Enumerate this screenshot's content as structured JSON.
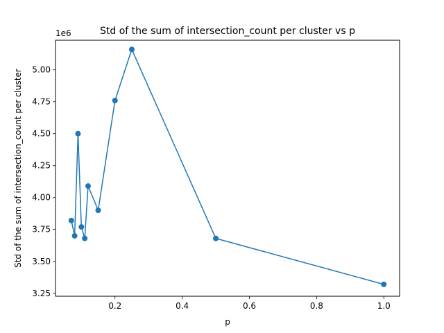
{
  "chart_data": {
    "type": "line",
    "title": "Std of the sum of intersection_count per cluster vs p",
    "xlabel": "p",
    "ylabel": "Std of the sum of intersection_count per cluster",
    "y_offset_label": "1e6",
    "xlim": [
      0.023,
      1.047
    ],
    "ylim": [
      3.227,
      5.232
    ],
    "x_ticks": [
      0.2,
      0.4,
      0.6,
      0.8,
      1.0
    ],
    "x_tick_labels": [
      "0.2",
      "0.4",
      "0.6",
      "0.8",
      "1.0"
    ],
    "y_ticks": [
      3.25,
      3.5,
      3.75,
      4.0,
      4.25,
      4.5,
      4.75,
      5.0
    ],
    "y_tick_labels": [
      "3.25",
      "3.50",
      "3.75",
      "4.00",
      "4.25",
      "4.50",
      "4.75",
      "5.00"
    ],
    "grid": false,
    "series": [
      {
        "color": "#1f77b4",
        "marker": "circle",
        "x": [
          0.07,
          0.08,
          0.09,
          0.1,
          0.11,
          0.12,
          0.15,
          0.2,
          0.25,
          0.5,
          1.0
        ],
        "y": [
          3.82,
          3.7,
          4.5,
          3.77,
          3.68,
          4.09,
          3.9,
          4.76,
          5.16,
          3.68,
          3.32
        ]
      }
    ]
  }
}
